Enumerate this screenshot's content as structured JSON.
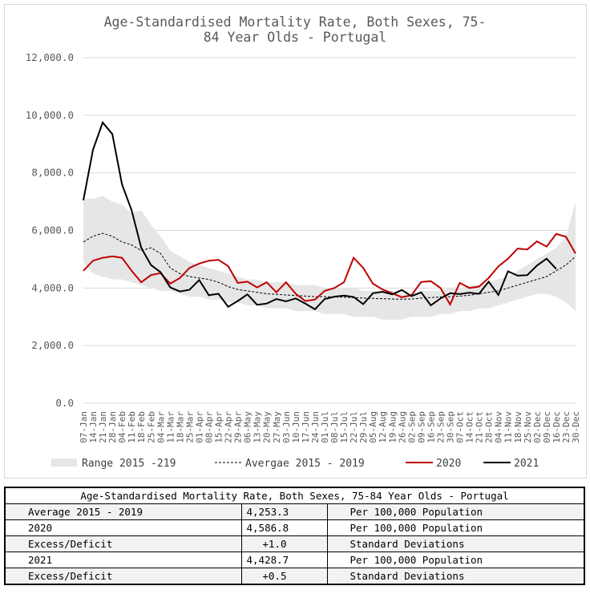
{
  "chart_data": {
    "type": "line",
    "title": "Age-Standardised Mortality Rate, Both Sexes, 75-84 Year Olds - Portugal",
    "title_lines": [
      "Age-Standardised Mortality Rate, Both Sexes, 75-",
      "84 Year Olds - Portugal"
    ],
    "ylim": [
      0,
      12000
    ],
    "y_ticks": [
      "0.0",
      "2,000.0",
      "4,000.0",
      "6,000.0",
      "8,000.0",
      "10,000.0",
      "12,000.0"
    ],
    "y_tick_values": [
      0,
      2000,
      4000,
      6000,
      8000,
      10000,
      12000
    ],
    "grid": "horizontal",
    "legend_position": "bottom",
    "x": [
      "07-Jan",
      "14-Jan",
      "21-Jan",
      "28-Jan",
      "04-Feb",
      "11-Feb",
      "18-Feb",
      "25-Feb",
      "04-Mar",
      "11-Mar",
      "18-Mar",
      "25-Mar",
      "01-Apr",
      "08-Apr",
      "15-Apr",
      "22-Apr",
      "29-Apr",
      "06-May",
      "13-May",
      "20-May",
      "27-May",
      "03-Jun",
      "10-Jun",
      "17-Jun",
      "24-Jun",
      "01-Jul",
      "08-Jul",
      "15-Jul",
      "22-Jul",
      "29-Jul",
      "05-Aug",
      "12-Aug",
      "19-Aug",
      "26-Aug",
      "02-Sep",
      "09-Sep",
      "16-Sep",
      "23-Sep",
      "30-Sep",
      "07-Oct",
      "14-Oct",
      "21-Oct",
      "28-Oct",
      "04-Nov",
      "11-Nov",
      "18-Nov",
      "25-Nov",
      "02-Dec",
      "09-Dec",
      "16-Dec",
      "23-Dec",
      "30-Dec"
    ],
    "series": [
      {
        "name": "Range 2015 -219",
        "kind": "band",
        "color": "#e6e6e6",
        "lower": [
          4900,
          4500,
          4400,
          4300,
          4300,
          4200,
          4100,
          4000,
          3900,
          3900,
          3800,
          3700,
          3700,
          3600,
          3600,
          3500,
          3500,
          3400,
          3400,
          3300,
          3300,
          3300,
          3200,
          3200,
          3200,
          3100,
          3100,
          3100,
          3000,
          3000,
          3000,
          2900,
          2900,
          2900,
          3000,
          3000,
          3000,
          3100,
          3100,
          3200,
          3200,
          3300,
          3300,
          3400,
          3500,
          3600,
          3700,
          3800,
          3800,
          3700,
          3500,
          3200
        ],
        "upper": [
          7100,
          7100,
          7200,
          7000,
          6900,
          6600,
          6700,
          6200,
          5800,
          5300,
          5100,
          4900,
          4800,
          4700,
          4600,
          4500,
          4400,
          4300,
          4300,
          4200,
          4200,
          4200,
          4100,
          4100,
          4100,
          4000,
          4000,
          4000,
          4000,
          3900,
          3900,
          3900,
          3900,
          3800,
          3800,
          3900,
          3900,
          3900,
          4000,
          4000,
          4100,
          4100,
          4200,
          4300,
          4400,
          4600,
          4800,
          5000,
          5200,
          5400,
          5800,
          7000
        ]
      },
      {
        "name": "Avergae 2015 - 2019",
        "kind": "line",
        "color": "#000000",
        "dash": "3,2",
        "values": [
          5600,
          5800,
          5900,
          5800,
          5600,
          5500,
          5300,
          5400,
          5200,
          4700,
          4500,
          4400,
          4350,
          4300,
          4200,
          4050,
          3950,
          3900,
          3850,
          3800,
          3780,
          3760,
          3740,
          3720,
          3700,
          3700,
          3690,
          3680,
          3670,
          3650,
          3640,
          3630,
          3620,
          3610,
          3620,
          3650,
          3670,
          3690,
          3700,
          3720,
          3750,
          3800,
          3850,
          3900,
          4000,
          4100,
          4200,
          4300,
          4400,
          4600,
          4800,
          5100
        ]
      },
      {
        "name": "2020",
        "kind": "line",
        "color": "#c00000",
        "values": [
          4600,
          4950,
          5050,
          5100,
          5050,
          4600,
          4200,
          4450,
          4520,
          4150,
          4350,
          4700,
          4850,
          4950,
          4980,
          4760,
          4180,
          4220,
          4020,
          4200,
          3850,
          4200,
          3800,
          3550,
          3600,
          3900,
          4000,
          4200,
          5050,
          4700,
          4150,
          3950,
          3820,
          3680,
          3750,
          4210,
          4240,
          4000,
          3430,
          4180,
          4000,
          4050,
          4350,
          4750,
          5020,
          5370,
          5340,
          5620,
          5440,
          5880,
          5780,
          5200
        ]
      },
      {
        "name": "2021",
        "kind": "line",
        "color": "#000000",
        "values": [
          7050,
          8800,
          9750,
          9350,
          7600,
          6700,
          5400,
          4800,
          4550,
          4020,
          3880,
          3940,
          4280,
          3750,
          3800,
          3350,
          3550,
          3780,
          3420,
          3460,
          3620,
          3540,
          3640,
          3460,
          3260,
          3620,
          3700,
          3740,
          3690,
          3440,
          3820,
          3870,
          3780,
          3930,
          3720,
          3850,
          3400,
          3640,
          3820,
          3790,
          3840,
          3800,
          4220,
          3760,
          4580,
          4430,
          4450,
          4780,
          5020,
          4660,
          null,
          null
        ]
      }
    ]
  },
  "table": {
    "title": "Age-Standardised Mortality Rate, Both Sexes, 75-84 Year Olds - Portugal",
    "rows": [
      {
        "label": "Average 2015 - 2019",
        "value": "4,253.3",
        "unit": "Per 100,000 Population"
      },
      {
        "label": "2020",
        "value": "4,586.8",
        "unit": "Per 100,000 Population"
      },
      {
        "label": "Excess/Deficit",
        "value": "+1.0",
        "unit": "Standard Deviations"
      },
      {
        "label": "2021",
        "value": "4,428.7",
        "unit": "Per 100,000 Population"
      },
      {
        "label": "Excess/Deficit",
        "value": "+0.5",
        "unit": "Standard Deviations"
      }
    ]
  }
}
